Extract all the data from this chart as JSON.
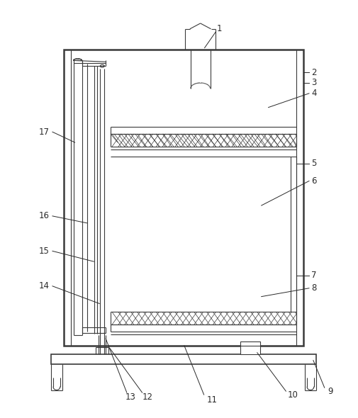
{
  "bg_color": "#ffffff",
  "line_color": "#3a3a3a",
  "lw_thin": 0.8,
  "lw_med": 1.2,
  "lw_thick": 1.8,
  "fig_w": 5.06,
  "fig_h": 5.9,
  "dpi": 100
}
